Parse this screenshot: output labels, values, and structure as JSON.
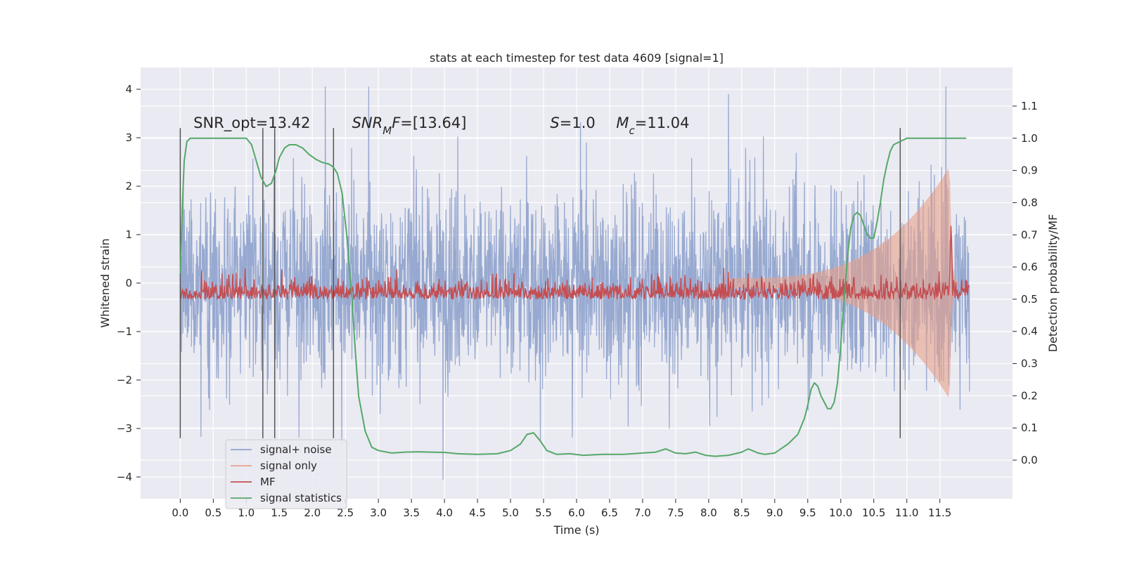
{
  "chart_data": {
    "type": "line",
    "title": "stats at each timestep for test data 4609 [signal=1]",
    "xlabel": "Time (s)",
    "ylabel": "Whitened strain",
    "y2label": "Detection probability/MF",
    "xlim": [
      -0.6,
      12.6
    ],
    "ylim": [
      -4.45,
      4.45
    ],
    "y2lim": [
      -0.12,
      1.22
    ],
    "x_ticks": [
      "0.0",
      "0.5",
      "1.0",
      "1.5",
      "2.0",
      "2.5",
      "3.0",
      "3.5",
      "4.0",
      "4.5",
      "5.0",
      "5.5",
      "6.0",
      "6.5",
      "7.0",
      "7.5",
      "8.0",
      "8.5",
      "9.0",
      "9.5",
      "10.0",
      "10.5",
      "11.0",
      "11.5"
    ],
    "y_ticks": [
      "−4",
      "−3",
      "−2",
      "−1",
      "0",
      "1",
      "2",
      "3",
      "4"
    ],
    "y2_ticks": [
      "0.0",
      "0.1",
      "0.2",
      "0.3",
      "0.4",
      "0.5",
      "0.6",
      "0.7",
      "0.8",
      "0.9",
      "1.0",
      "1.1"
    ],
    "legend_position": "lower-left",
    "series": [
      {
        "name": "signal+ noise",
        "color": "#8ea2cc",
        "style": "dense noise trace, roughly ±1.9 with peaks to ±4",
        "x_range": [
          0.0,
          11.95
        ]
      },
      {
        "name": "signal only",
        "color": "#e8a088",
        "style": "chirp growing in amplitude, peaking near t=11.65",
        "x_range": [
          8.3,
          11.95
        ],
        "peak_amplitude": 2.4,
        "peak_time": 11.65
      },
      {
        "name": "MF",
        "color": "#c44e52",
        "axis": "right",
        "baseline": 0.5,
        "noise_amplitude": 0.03,
        "peak_time": 11.67,
        "peak_value": 0.74
      },
      {
        "name": "signal statistics",
        "color": "#55a868",
        "axis": "right",
        "x": [
          0.0,
          0.03,
          0.06,
          0.1,
          0.15,
          0.2,
          0.3,
          0.5,
          0.7,
          0.9,
          1.0,
          1.08,
          1.15,
          1.22,
          1.3,
          1.38,
          1.45,
          1.5,
          1.58,
          1.65,
          1.75,
          1.85,
          1.95,
          2.05,
          2.15,
          2.25,
          2.32,
          2.38,
          2.45,
          2.52,
          2.6,
          2.65,
          2.7,
          2.8,
          2.9,
          3.0,
          3.2,
          3.4,
          3.6,
          3.8,
          4.0,
          4.2,
          4.5,
          4.8,
          5.0,
          5.15,
          5.25,
          5.35,
          5.45,
          5.55,
          5.7,
          5.9,
          6.1,
          6.4,
          6.7,
          7.0,
          7.2,
          7.35,
          7.5,
          7.65,
          7.8,
          7.95,
          8.1,
          8.3,
          8.5,
          8.6,
          8.75,
          8.85,
          9.0,
          9.2,
          9.35,
          9.45,
          9.5,
          9.55,
          9.6,
          9.65,
          9.7,
          9.75,
          9.8,
          9.85,
          9.9,
          9.95,
          10.0,
          10.05,
          10.1,
          10.15,
          10.2,
          10.25,
          10.3,
          10.35,
          10.4,
          10.45,
          10.5,
          10.55,
          10.6,
          10.65,
          10.7,
          10.75,
          10.8,
          10.9,
          11.0,
          11.1,
          11.2,
          11.3,
          11.5,
          11.7,
          11.9
        ],
        "y": [
          0.58,
          0.78,
          0.93,
          0.99,
          1.0,
          1.0,
          1.0,
          1.0,
          1.0,
          1.0,
          1.0,
          0.98,
          0.93,
          0.88,
          0.85,
          0.86,
          0.9,
          0.94,
          0.97,
          0.98,
          0.98,
          0.97,
          0.95,
          0.935,
          0.925,
          0.92,
          0.91,
          0.89,
          0.83,
          0.7,
          0.5,
          0.34,
          0.2,
          0.09,
          0.04,
          0.03,
          0.022,
          0.025,
          0.026,
          0.025,
          0.024,
          0.02,
          0.018,
          0.02,
          0.03,
          0.05,
          0.08,
          0.085,
          0.06,
          0.03,
          0.018,
          0.02,
          0.015,
          0.018,
          0.018,
          0.022,
          0.025,
          0.035,
          0.022,
          0.02,
          0.025,
          0.015,
          0.012,
          0.015,
          0.025,
          0.035,
          0.022,
          0.018,
          0.022,
          0.05,
          0.08,
          0.13,
          0.17,
          0.22,
          0.24,
          0.23,
          0.2,
          0.18,
          0.16,
          0.16,
          0.18,
          0.24,
          0.36,
          0.5,
          0.63,
          0.72,
          0.76,
          0.77,
          0.76,
          0.73,
          0.7,
          0.69,
          0.69,
          0.74,
          0.8,
          0.87,
          0.92,
          0.96,
          0.98,
          0.99,
          1.0,
          1.0,
          1.0,
          1.0,
          1.0,
          1.0,
          1.0
        ]
      }
    ],
    "vertical_lines": [
      0.0,
      1.25,
      1.43,
      2.32,
      10.9
    ],
    "annotations": [
      {
        "name": "snr-opt",
        "x": 0.2,
        "y": 3.2,
        "parts": [
          {
            "text": "SNR_opt=13.42"
          }
        ]
      },
      {
        "name": "snr-mf",
        "x": 2.6,
        "y": 3.2,
        "parts": [
          {
            "text": "SNR",
            "italic": true
          },
          {
            "text": "M",
            "italic": true,
            "sub": true
          },
          {
            "text": "F",
            "italic": true
          },
          {
            "text": "=[13.64]"
          }
        ]
      },
      {
        "name": "s-value",
        "x": 5.6,
        "y": 3.2,
        "parts": [
          {
            "text": "S",
            "italic": true
          },
          {
            "text": "=1.0"
          }
        ]
      },
      {
        "name": "mc-value",
        "x": 6.6,
        "y": 3.2,
        "parts": [
          {
            "text": "M",
            "italic": true
          },
          {
            "text": "c",
            "italic": true,
            "sub": true
          },
          {
            "text": "=11.04"
          }
        ]
      }
    ]
  }
}
